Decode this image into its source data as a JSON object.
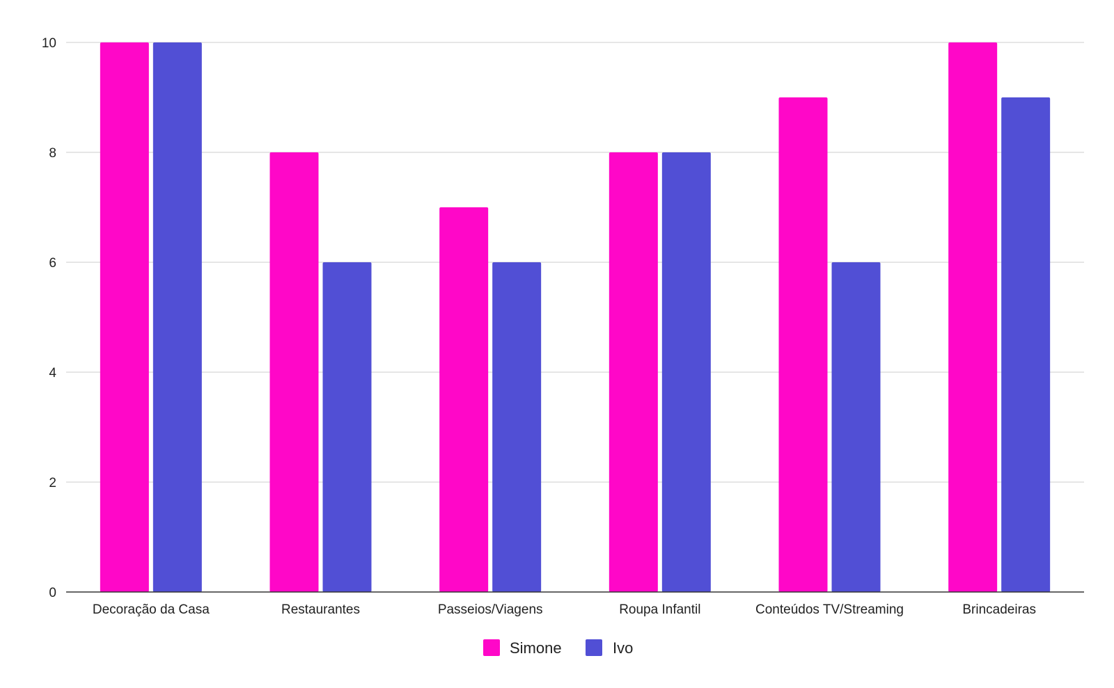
{
  "chart_data": {
    "type": "bar",
    "categories": [
      "Decoração da Casa",
      "Restaurantes",
      "Passeios/Viagens",
      "Roupa Infantil",
      "Conteúdos TV/Streaming",
      "Brincadeiras"
    ],
    "series": [
      {
        "name": "Simone",
        "color": "#ff07c8",
        "values": [
          10,
          8,
          7,
          8,
          9,
          10
        ]
      },
      {
        "name": "Ivo",
        "color": "#514fd5",
        "values": [
          10,
          6,
          6,
          8,
          6,
          9
        ]
      }
    ],
    "title": "",
    "xlabel": "",
    "ylabel": "",
    "ylim": [
      0,
      10
    ],
    "yticks": [
      0,
      2,
      4,
      6,
      8,
      10
    ],
    "grid": true,
    "legend_position": "bottom"
  }
}
